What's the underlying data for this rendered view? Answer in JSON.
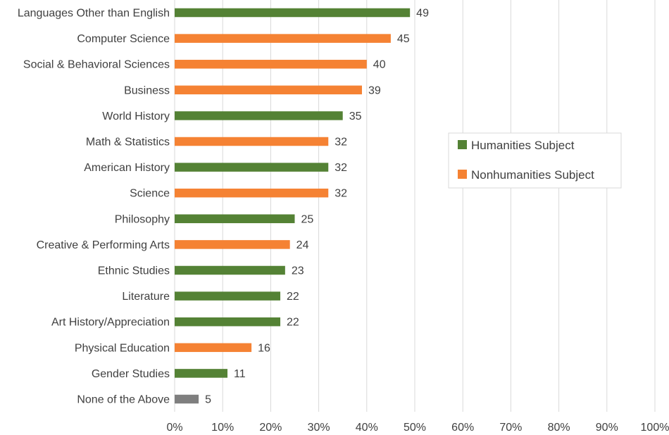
{
  "chart_data": {
    "type": "bar",
    "orientation": "horizontal",
    "categories": [
      "Languages Other than English",
      "Computer Science",
      "Social & Behavioral Sciences",
      "Business",
      "World History",
      "Math & Statistics",
      "American History",
      "Science",
      "Philosophy",
      "Creative & Performing Arts",
      "Ethnic Studies",
      "Literature",
      "Art History/Appreciation",
      "Physical Education",
      "Gender Studies",
      "None of the Above"
    ],
    "values": [
      49,
      45,
      40,
      39,
      35,
      32,
      32,
      32,
      25,
      24,
      23,
      22,
      22,
      16,
      11,
      5
    ],
    "groups": [
      "humanities",
      "nonhumanities",
      "nonhumanities",
      "nonhumanities",
      "humanities",
      "nonhumanities",
      "humanities",
      "nonhumanities",
      "humanities",
      "nonhumanities",
      "humanities",
      "humanities",
      "humanities",
      "nonhumanities",
      "humanities",
      "none"
    ],
    "group_colors": {
      "humanities": "#548235",
      "nonhumanities": "#F58233",
      "none": "#7F7F7F"
    },
    "legend": [
      {
        "group": "humanities",
        "label": "Humanities Subject"
      },
      {
        "group": "nonhumanities",
        "label": "Nonhumanities Subject"
      }
    ],
    "legend_placement": "right",
    "xlim": [
      0,
      100
    ],
    "x_ticks": [
      0,
      10,
      20,
      30,
      40,
      50,
      60,
      70,
      80,
      90,
      100
    ],
    "x_tick_labels": [
      "0%",
      "10%",
      "20%",
      "30%",
      "40%",
      "50%",
      "60%",
      "70%",
      "80%",
      "90%",
      "100%"
    ],
    "grid": "vertical",
    "grid_color": "#D9D9D9"
  }
}
